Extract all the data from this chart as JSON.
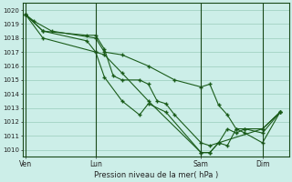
{
  "xlabel": "Pression niveau de la mer( hPa )",
  "bg_color": "#cceee8",
  "grid_color": "#99ccbb",
  "line_color": "#1a5c1a",
  "dark_green": "#1a4a1a",
  "ylim": [
    1009.5,
    1020.5
  ],
  "yticks": [
    1010,
    1011,
    1012,
    1013,
    1014,
    1015,
    1016,
    1017,
    1018,
    1019,
    1020
  ],
  "xtick_labels": [
    "Ven",
    "Lun",
    "Sam",
    "Dim"
  ],
  "xtick_positions": [
    0,
    8,
    20,
    27
  ],
  "vline_positions": [
    0,
    8,
    20,
    27
  ],
  "xlim": [
    -0.3,
    30
  ],
  "series": [
    {
      "x": [
        0,
        1,
        3,
        8,
        9,
        11,
        14,
        17,
        20,
        21,
        22,
        23,
        24,
        25,
        27,
        29
      ],
      "y": [
        1019.7,
        1019.2,
        1018.5,
        1018.0,
        1017.0,
        1016.8,
        1016.0,
        1015.0,
        1014.5,
        1014.7,
        1013.2,
        1012.5,
        1011.5,
        1011.5,
        1011.5,
        1012.7
      ]
    },
    {
      "x": [
        0,
        2,
        7,
        8,
        9,
        10,
        11,
        13,
        14,
        15,
        16,
        17,
        20,
        21,
        22,
        23,
        24,
        25,
        27,
        29
      ],
      "y": [
        1019.7,
        1018.5,
        1018.2,
        1018.2,
        1017.2,
        1015.3,
        1015.0,
        1015.0,
        1014.7,
        1013.5,
        1013.3,
        1012.5,
        1010.5,
        1010.3,
        1010.5,
        1011.5,
        1011.2,
        1011.5,
        1011.2,
        1012.7
      ]
    },
    {
      "x": [
        0,
        2,
        7,
        8,
        9,
        11,
        13,
        14,
        16,
        20,
        21,
        22,
        23,
        24,
        25,
        27,
        29
      ],
      "y": [
        1019.7,
        1018.5,
        1017.8,
        1017.0,
        1015.2,
        1013.5,
        1012.5,
        1013.3,
        1012.7,
        1009.8,
        1009.8,
        1010.5,
        1010.3,
        1011.5,
        1011.2,
        1010.5,
        1012.7
      ]
    },
    {
      "x": [
        0,
        2,
        8,
        9,
        11,
        14,
        20,
        21,
        22,
        27,
        29
      ],
      "y": [
        1019.7,
        1018.0,
        1017.0,
        1016.8,
        1015.5,
        1013.5,
        1009.8,
        1009.8,
        1010.5,
        1011.5,
        1012.7
      ]
    }
  ]
}
